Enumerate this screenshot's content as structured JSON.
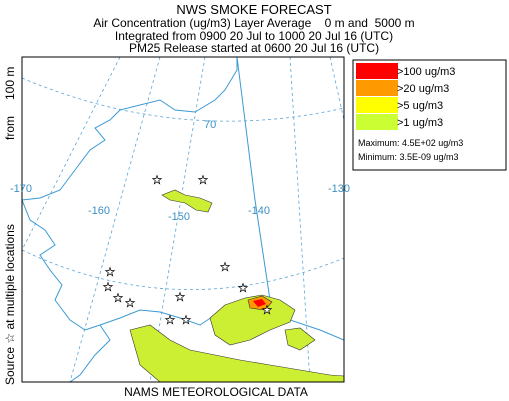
{
  "header": {
    "title": "NWS SMOKE FORECAST",
    "lines": [
      "Air Concentration (ug/m3) Layer Average    0 m and  5000 m",
      "Integrated from 0900 20 Jul to 1000 20 Jul 16 (UTC)",
      "PM25 Release started at 0600 20 Jul 16 (UTC)"
    ]
  },
  "side_label": [
    "Source ☆ at multiple locations",
    "from",
    "100 m"
  ],
  "footer": "NAMS METEOROLOGICAL DATA",
  "graticule": [
    "70",
    "-170",
    "-160",
    "-150",
    "-140",
    "-130"
  ],
  "legend": {
    "items": [
      {
        "label": ">100 ug/m3",
        "color": "#ff0000"
      },
      {
        "label": ">20 ug/m3",
        "color": "#ff9900"
      },
      {
        "label": ">5 ug/m3",
        "color": "#ffff00"
      },
      {
        "label": ">1 ug/m3",
        "color": "#ccff33"
      }
    ],
    "maximum": "Maximum: 4.5E+02 ug/m3",
    "minimum": "Minimum: 3.5E-09 ug/m3"
  }
}
